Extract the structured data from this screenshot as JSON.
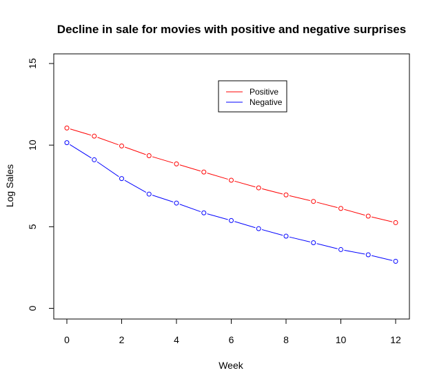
{
  "chart_data": {
    "type": "line",
    "title": "Decline in sale for movies with positive and negative surprises",
    "xlabel": "Week",
    "ylabel": "Log Sales",
    "xlim": [
      0,
      12
    ],
    "ylim": [
      0,
      15
    ],
    "xticks": [
      0,
      2,
      4,
      6,
      8,
      10,
      12
    ],
    "yticks": [
      0,
      5,
      10,
      15
    ],
    "grid": false,
    "legend": {
      "position": "top-right",
      "entries": [
        "Positive",
        "Negative"
      ]
    },
    "x": [
      0,
      1,
      2,
      3,
      4,
      5,
      6,
      7,
      8,
      9,
      10,
      11,
      12
    ],
    "series": [
      {
        "name": "Positive",
        "color": "#ff0000",
        "values": [
          11.05,
          10.55,
          9.95,
          9.35,
          8.85,
          8.35,
          7.85,
          7.38,
          6.95,
          6.55,
          6.12,
          5.65,
          5.25
        ]
      },
      {
        "name": "Negative",
        "color": "#0000ff",
        "values": [
          10.15,
          9.1,
          7.95,
          7.0,
          6.45,
          5.85,
          5.38,
          4.88,
          4.42,
          4.02,
          3.6,
          3.28,
          2.88
        ]
      }
    ]
  }
}
